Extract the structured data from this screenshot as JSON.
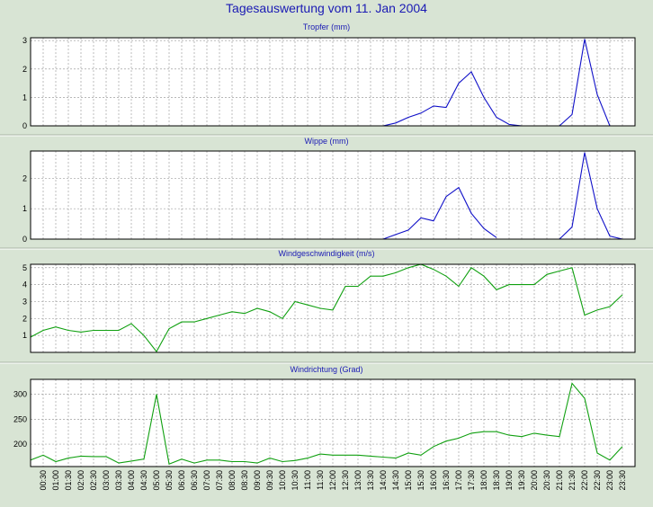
{
  "page_title": "Tagesauswertung vom 11. Jan 2004",
  "x_tick_labels": [
    "00:30",
    "01:00",
    "01:30",
    "02:00",
    "02:30",
    "03:00",
    "03:30",
    "04:00",
    "04:30",
    "05:00",
    "05:30",
    "06:00",
    "06:30",
    "07:00",
    "07:30",
    "08:00",
    "08:30",
    "09:00",
    "09:30",
    "10:00",
    "10:30",
    "11:00",
    "11:30",
    "12:00",
    "12:30",
    "13:00",
    "13:30",
    "14:00",
    "14:30",
    "15:00",
    "15:30",
    "16:00",
    "16:30",
    "17:00",
    "17:30",
    "18:00",
    "18:30",
    "19:00",
    "19:30",
    "20:00",
    "20:30",
    "21:00",
    "21:30",
    "22:00",
    "22:30",
    "23:00",
    "23:30"
  ],
  "chart_data": [
    {
      "type": "line",
      "title": "Tropfer (mm)",
      "color": "#1010c8",
      "ylim": [
        0,
        3.1
      ],
      "yticks": [
        0,
        1,
        2,
        3
      ],
      "x": [
        0,
        0.5,
        1,
        1.5,
        2,
        2.5,
        3,
        3.5,
        4,
        4.5,
        5,
        5.5,
        6,
        6.5,
        7,
        7.5,
        8,
        8.5,
        9,
        9.5,
        10,
        10.5,
        11,
        11.5,
        12,
        12.5,
        13,
        13.5,
        14,
        14.5,
        15,
        15.5,
        16,
        16.5,
        17,
        17.5,
        18,
        18.5,
        19,
        19.5,
        20,
        20.5,
        21,
        21.5,
        22,
        22.5,
        23,
        23.5,
        24
      ],
      "values": [
        null,
        null,
        null,
        null,
        null,
        null,
        null,
        null,
        null,
        null,
        null,
        null,
        null,
        null,
        null,
        null,
        null,
        null,
        null,
        null,
        null,
        null,
        null,
        null,
        null,
        null,
        null,
        null,
        0,
        0.1,
        0.3,
        0.45,
        0.7,
        0.65,
        1.5,
        1.9,
        1.0,
        0.3,
        0.05,
        0,
        null,
        null,
        0,
        0.4,
        3.05,
        1.1,
        0,
        null,
        null
      ]
    },
    {
      "type": "line",
      "title": "Wippe (mm)",
      "color": "#1010c8",
      "ylim": [
        0,
        2.9
      ],
      "yticks": [
        0,
        1,
        2
      ],
      "x": [
        0,
        0.5,
        1,
        1.5,
        2,
        2.5,
        3,
        3.5,
        4,
        4.5,
        5,
        5.5,
        6,
        6.5,
        7,
        7.5,
        8,
        8.5,
        9,
        9.5,
        10,
        10.5,
        11,
        11.5,
        12,
        12.5,
        13,
        13.5,
        14,
        14.5,
        15,
        15.5,
        16,
        16.5,
        17,
        17.5,
        18,
        18.5,
        19,
        19.5,
        20,
        20.5,
        21,
        21.5,
        22,
        22.5,
        23,
        23.5,
        24
      ],
      "values": [
        null,
        null,
        null,
        null,
        null,
        null,
        null,
        null,
        null,
        null,
        null,
        null,
        null,
        null,
        null,
        null,
        null,
        null,
        null,
        null,
        null,
        null,
        null,
        null,
        null,
        null,
        null,
        null,
        0,
        0.15,
        0.3,
        0.7,
        0.6,
        1.4,
        1.7,
        0.85,
        0.35,
        0.05,
        null,
        null,
        null,
        null,
        0,
        0.4,
        2.85,
        1.0,
        0.1,
        0,
        null
      ]
    },
    {
      "type": "line",
      "title": "Windgeschwindigkeit (m/s)",
      "color": "#10a010",
      "ylim": [
        0,
        5.2
      ],
      "yticks": [
        1,
        2,
        3,
        4,
        5
      ],
      "x": [
        0,
        0.5,
        1,
        1.5,
        2,
        2.5,
        3,
        3.5,
        4,
        4.5,
        5,
        5.5,
        6,
        6.5,
        7,
        7.5,
        8,
        8.5,
        9,
        9.5,
        10,
        10.5,
        11,
        11.5,
        12,
        12.5,
        13,
        13.5,
        14,
        14.5,
        15,
        15.5,
        16,
        16.5,
        17,
        17.5,
        18,
        18.5,
        19,
        19.5,
        20,
        20.5,
        21,
        21.5,
        22,
        22.5,
        23,
        23.5,
        24
      ],
      "values": [
        0.9,
        1.3,
        1.5,
        1.3,
        1.2,
        1.3,
        1.3,
        1.3,
        1.7,
        1.0,
        0.05,
        1.4,
        1.8,
        1.8,
        2.0,
        2.2,
        2.4,
        2.3,
        2.6,
        2.4,
        2.0,
        3.0,
        2.8,
        2.6,
        2.5,
        3.9,
        3.9,
        4.5,
        4.5,
        4.7,
        5.0,
        5.2,
        4.9,
        4.5,
        3.9,
        5.0,
        4.5,
        3.7,
        4.0,
        4.0,
        4.0,
        4.6,
        4.8,
        5.0,
        2.2,
        2.5,
        2.7,
        3.4,
        null
      ]
    },
    {
      "type": "line",
      "title": "Windrichtung (Grad)",
      "color": "#10a010",
      "ylim": [
        155,
        330
      ],
      "yticks": [
        200,
        250,
        300
      ],
      "x": [
        0,
        0.5,
        1,
        1.5,
        2,
        2.5,
        3,
        3.5,
        4,
        4.5,
        5,
        5.5,
        6,
        6.5,
        7,
        7.5,
        8,
        8.5,
        9,
        9.5,
        10,
        10.5,
        11,
        11.5,
        12,
        12.5,
        13,
        13.5,
        14,
        14.5,
        15,
        15.5,
        16,
        16.5,
        17,
        17.5,
        18,
        18.5,
        19,
        19.5,
        20,
        20.5,
        21,
        21.5,
        22,
        22.5,
        23,
        23.5,
        24
      ],
      "values": [
        168,
        178,
        165,
        172,
        176,
        175,
        175,
        162,
        166,
        170,
        300,
        160,
        170,
        162,
        168,
        168,
        165,
        165,
        162,
        172,
        165,
        167,
        172,
        180,
        178,
        178,
        178,
        176,
        174,
        172,
        182,
        178,
        195,
        206,
        212,
        222,
        225,
        225,
        218,
        215,
        222,
        218,
        215,
        322,
        292,
        182,
        168,
        195,
        null
      ]
    }
  ]
}
